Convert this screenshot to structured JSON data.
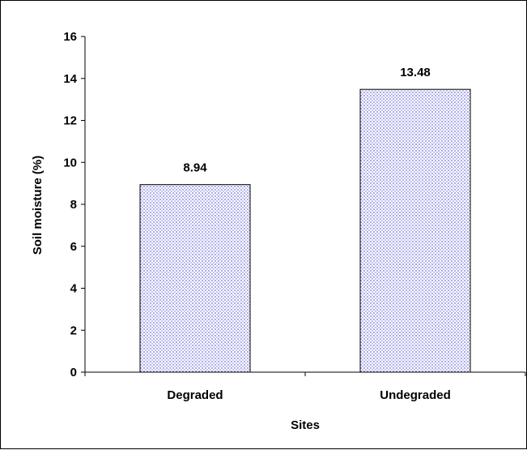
{
  "chart_data": {
    "type": "bar",
    "title": "",
    "xlabel": "Sites",
    "ylabel": "Soil moisture (%)",
    "categories": [
      "Degraded",
      "Undegraded"
    ],
    "values": [
      8.94,
      13.48
    ],
    "data_labels": [
      "8.94",
      "13.48"
    ],
    "ylim": [
      0,
      16
    ],
    "yticks": [
      "0",
      "2",
      "4",
      "6",
      "8",
      "10",
      "12",
      "14",
      "16"
    ],
    "grid": false,
    "legend": "none",
    "bar_fill_color": "#c8c8f0",
    "bar_dot_color": "#7070d8",
    "bar_outline_color": "#000000"
  }
}
